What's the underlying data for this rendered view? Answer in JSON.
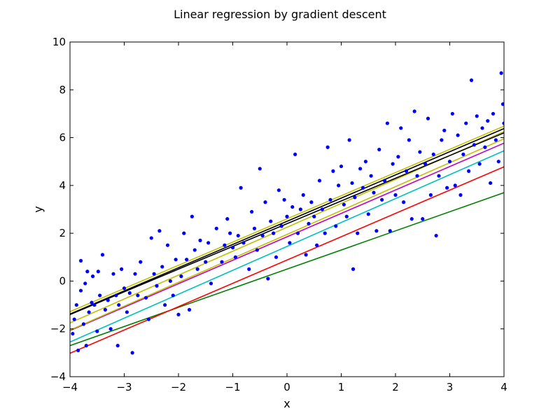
{
  "chart_data": {
    "type": "scatter",
    "title": "Linear regression by gradient descent",
    "xlabel": "x",
    "ylabel": "y",
    "xlim": [
      -4,
      4
    ],
    "ylim": [
      -4,
      10
    ],
    "x_ticks": [
      -4,
      -3,
      -2,
      -1,
      0,
      1,
      2,
      3,
      4
    ],
    "y_ticks": [
      -4,
      -2,
      0,
      2,
      4,
      6,
      8,
      10
    ],
    "x_tick_labels": [
      "−4",
      "−3",
      "−2",
      "−1",
      "0",
      "1",
      "2",
      "3",
      "4"
    ],
    "y_tick_labels": [
      "−4",
      "−2",
      "0",
      "2",
      "4",
      "6",
      "8",
      "10"
    ],
    "grid": false,
    "legend": "none",
    "scatter_points": [
      [
        -3.95,
        -2.2
      ],
      [
        -3.92,
        -1.6
      ],
      [
        -3.88,
        -1.0
      ],
      [
        -3.85,
        -2.9
      ],
      [
        -3.8,
        -0.4
      ],
      [
        -3.8,
        0.85
      ],
      [
        -3.75,
        -1.8
      ],
      [
        -3.72,
        -0.1
      ],
      [
        -3.7,
        -2.7
      ],
      [
        -3.68,
        0.4
      ],
      [
        -3.65,
        -1.3
      ],
      [
        -3.6,
        -0.9
      ],
      [
        -3.58,
        0.2
      ],
      [
        -3.55,
        -1.0
      ],
      [
        -3.5,
        -2.1
      ],
      [
        -3.48,
        0.4
      ],
      [
        -3.45,
        -0.6
      ],
      [
        -3.4,
        1.1
      ],
      [
        -3.35,
        -1.2
      ],
      [
        -3.3,
        -0.8
      ],
      [
        -3.25,
        -2.0
      ],
      [
        -3.2,
        0.3
      ],
      [
        -3.15,
        -0.6
      ],
      [
        -3.12,
        -2.7
      ],
      [
        -3.1,
        -1.0
      ],
      [
        -3.05,
        0.5
      ],
      [
        -3.0,
        -0.3
      ],
      [
        -2.95,
        -1.3
      ],
      [
        -2.9,
        -0.5
      ],
      [
        -2.85,
        -3.0
      ],
      [
        -2.8,
        0.3
      ],
      [
        -2.75,
        -0.6
      ],
      [
        -2.7,
        0.8
      ],
      [
        -2.6,
        -0.7
      ],
      [
        -2.55,
        -1.6
      ],
      [
        -2.5,
        1.8
      ],
      [
        -2.45,
        0.3
      ],
      [
        -2.4,
        -0.2
      ],
      [
        -2.35,
        2.1
      ],
      [
        -2.3,
        0.6
      ],
      [
        -2.25,
        -1.0
      ],
      [
        -2.2,
        1.5
      ],
      [
        -2.15,
        0.0
      ],
      [
        -2.1,
        -0.6
      ],
      [
        -2.05,
        0.9
      ],
      [
        -2.0,
        -1.4
      ],
      [
        -1.95,
        0.2
      ],
      [
        -1.9,
        2.0
      ],
      [
        -1.85,
        0.9
      ],
      [
        -1.8,
        -1.2
      ],
      [
        -1.75,
        2.7
      ],
      [
        -1.7,
        1.3
      ],
      [
        -1.65,
        0.5
      ],
      [
        -1.6,
        1.7
      ],
      [
        -1.5,
        0.8
      ],
      [
        -1.45,
        1.6
      ],
      [
        -1.4,
        -0.1
      ],
      [
        -1.3,
        2.2
      ],
      [
        -1.2,
        0.8
      ],
      [
        -1.15,
        1.5
      ],
      [
        -1.1,
        2.6
      ],
      [
        -1.05,
        2.0
      ],
      [
        -1.0,
        1.4
      ],
      [
        -0.95,
        1.0
      ],
      [
        -0.9,
        1.9
      ],
      [
        -0.85,
        3.9
      ],
      [
        -0.8,
        1.6
      ],
      [
        -0.7,
        0.5
      ],
      [
        -0.65,
        2.9
      ],
      [
        -0.6,
        2.2
      ],
      [
        -0.55,
        1.3
      ],
      [
        -0.5,
        4.7
      ],
      [
        -0.45,
        1.9
      ],
      [
        -0.4,
        3.3
      ],
      [
        -0.35,
        0.1
      ],
      [
        -0.3,
        2.5
      ],
      [
        -0.25,
        2.0
      ],
      [
        -0.2,
        1.0
      ],
      [
        -0.15,
        3.8
      ],
      [
        -0.1,
        2.3
      ],
      [
        -0.05,
        3.4
      ],
      [
        0.0,
        2.7
      ],
      [
        0.05,
        1.6
      ],
      [
        0.1,
        3.1
      ],
      [
        0.15,
        5.3
      ],
      [
        0.2,
        2.0
      ],
      [
        0.25,
        3.0
      ],
      [
        0.3,
        3.6
      ],
      [
        0.35,
        1.1
      ],
      [
        0.4,
        2.4
      ],
      [
        0.45,
        3.3
      ],
      [
        0.5,
        2.7
      ],
      [
        0.55,
        1.5
      ],
      [
        0.6,
        4.2
      ],
      [
        0.65,
        3.0
      ],
      [
        0.7,
        2.0
      ],
      [
        0.75,
        5.6
      ],
      [
        0.8,
        3.4
      ],
      [
        0.85,
        4.6
      ],
      [
        0.9,
        2.3
      ],
      [
        0.95,
        4.0
      ],
      [
        1.0,
        4.8
      ],
      [
        1.05,
        3.2
      ],
      [
        1.1,
        2.7
      ],
      [
        1.15,
        5.9
      ],
      [
        1.2,
        4.1
      ],
      [
        1.22,
        0.5
      ],
      [
        1.25,
        3.5
      ],
      [
        1.3,
        2.0
      ],
      [
        1.35,
        4.7
      ],
      [
        1.4,
        3.9
      ],
      [
        1.45,
        5.0
      ],
      [
        1.5,
        2.8
      ],
      [
        1.55,
        4.4
      ],
      [
        1.6,
        3.7
      ],
      [
        1.65,
        2.1
      ],
      [
        1.7,
        5.5
      ],
      [
        1.75,
        3.4
      ],
      [
        1.8,
        4.2
      ],
      [
        1.85,
        6.6
      ],
      [
        1.9,
        2.1
      ],
      [
        1.95,
        4.9
      ],
      [
        2.0,
        3.6
      ],
      [
        2.05,
        5.2
      ],
      [
        2.1,
        6.4
      ],
      [
        2.15,
        3.3
      ],
      [
        2.2,
        4.6
      ],
      [
        2.25,
        5.9
      ],
      [
        2.3,
        2.6
      ],
      [
        2.35,
        7.1
      ],
      [
        2.4,
        4.4
      ],
      [
        2.45,
        5.4
      ],
      [
        2.5,
        2.6
      ],
      [
        2.55,
        4.9
      ],
      [
        2.6,
        6.8
      ],
      [
        2.65,
        3.6
      ],
      [
        2.7,
        5.3
      ],
      [
        2.75,
        1.9
      ],
      [
        2.8,
        4.4
      ],
      [
        2.85,
        5.9
      ],
      [
        2.9,
        6.3
      ],
      [
        2.95,
        3.9
      ],
      [
        3.0,
        5.0
      ],
      [
        3.05,
        7.0
      ],
      [
        3.1,
        4.0
      ],
      [
        3.15,
        6.1
      ],
      [
        3.2,
        3.6
      ],
      [
        3.25,
        5.3
      ],
      [
        3.3,
        6.6
      ],
      [
        3.35,
        4.6
      ],
      [
        3.4,
        8.4
      ],
      [
        3.45,
        5.7
      ],
      [
        3.5,
        6.9
      ],
      [
        3.55,
        4.9
      ],
      [
        3.6,
        6.4
      ],
      [
        3.65,
        5.6
      ],
      [
        3.7,
        6.7
      ],
      [
        3.75,
        4.1
      ],
      [
        3.8,
        7.0
      ],
      [
        3.85,
        5.9
      ],
      [
        3.9,
        5.0
      ],
      [
        3.95,
        8.7
      ],
      [
        3.98,
        7.4
      ],
      [
        4.0,
        6.6
      ]
    ],
    "regression_lines": [
      {
        "color": "#008000",
        "intercept": 0.5,
        "slope": 0.8
      },
      {
        "color": "#ff0000",
        "intercept": 0.88,
        "slope": 0.975
      },
      {
        "color": "#00bfbf",
        "intercept": 1.45,
        "slope": 1.0
      },
      {
        "color": "#bf00bf",
        "intercept": 1.85,
        "slope": 0.98
      },
      {
        "color": "#bfbf00",
        "intercept": 1.95,
        "slope": 1.0
      },
      {
        "color": "#bfbf00",
        "intercept": 2.25,
        "slope": 1.0
      },
      {
        "color": "#000000",
        "intercept": 2.4,
        "slope": 0.95
      },
      {
        "color": "#000000",
        "intercept": 2.5,
        "slope": 0.97
      },
      {
        "color": "#bfbf00",
        "intercept": 2.6,
        "slope": 0.97
      }
    ],
    "colors": {
      "points": "#0000ff",
      "axes": "#000000"
    }
  }
}
